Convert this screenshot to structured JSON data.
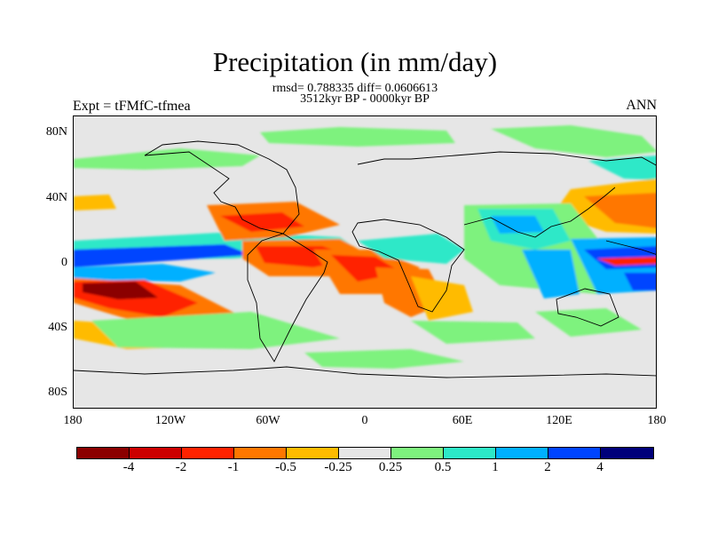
{
  "title": "Precipitation (in mm/day)",
  "subtitle_stats": "rmsd= 0.788335 diff= 0.0606613",
  "subtitle_period": "3512kyr BP - 0000kyr BP",
  "experiment_label": "Expt = tFMfC-tfmea",
  "season_label": "ANN",
  "lat_ticks": [
    "80N",
    "40N",
    "0",
    "40S",
    "80S"
  ],
  "lon_ticks": [
    "180",
    "120W",
    "60W",
    "0",
    "60E",
    "120E",
    "180"
  ],
  "colorbar": {
    "colors": [
      "#8b0000",
      "#cc0000",
      "#ff2200",
      "#ff7700",
      "#ffbb00",
      "#e6e6e6",
      "#7ef27e",
      "#2de8c8",
      "#00b0ff",
      "#0044ff",
      "#00007a"
    ],
    "labels": [
      "-4",
      "-2",
      "-1",
      "-0.5",
      "-0.25",
      "0.25",
      "0.5",
      "1",
      "2",
      "4"
    ]
  }
}
